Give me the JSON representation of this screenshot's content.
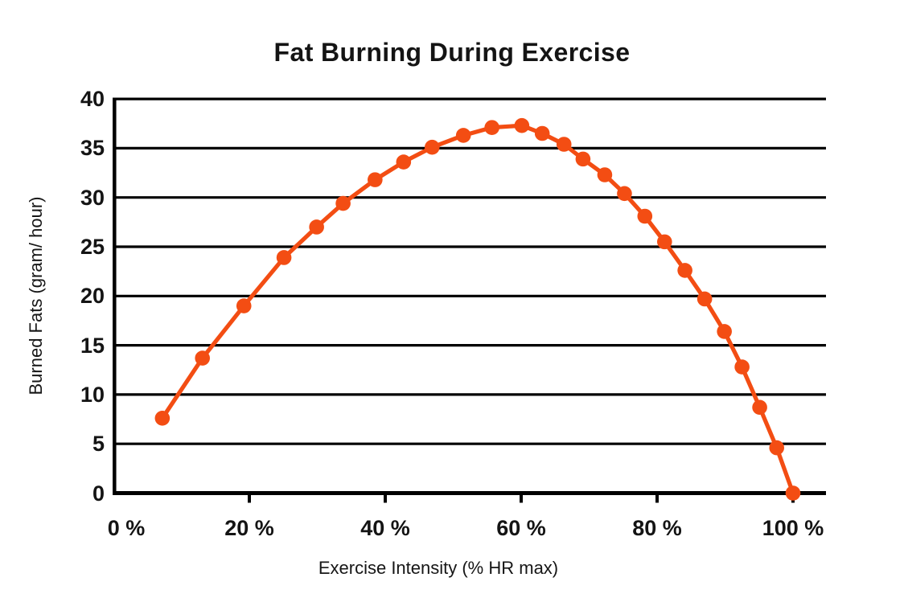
{
  "chart": {
    "title": "Fat Burning During Exercise",
    "xlabel": "Exercise Intensity (% HR max)",
    "ylabel": "Burned Fats (gram/ hour)"
  },
  "colors": {
    "line": "#F34D13",
    "axis": "#000000",
    "text": "#141414",
    "background": "#FFFFFF"
  },
  "chart_data": {
    "type": "line",
    "title": "Fat Burning During Exercise",
    "xlabel": "Exercise Intensity (% HR max)",
    "ylabel": "Burned Fats (gram/ hour)",
    "xlim": [
      0,
      105
    ],
    "ylim": [
      0,
      40
    ],
    "grid": "horizontal-only",
    "legend": false,
    "line_color": "#F34D13",
    "marker": "circle",
    "x_tick_values": [
      0,
      20,
      40,
      60,
      80,
      100
    ],
    "x_tick_labels": [
      "0 %",
      "20 %",
      "40 %",
      "60 %",
      "80 %",
      "100 %"
    ],
    "y_tick_values": [
      40,
      35,
      30,
      25,
      20,
      15,
      10,
      5,
      0
    ],
    "y_tick_labels": [
      "40",
      "35",
      "30",
      "25",
      "20",
      "15",
      "10",
      "5",
      "0"
    ],
    "series": [
      {
        "name": "burned-fat-curve",
        "points": [
          [
            7.2,
            7.6
          ],
          [
            13.1,
            13.7
          ],
          [
            19.2,
            19.0
          ],
          [
            25.1,
            23.9
          ],
          [
            29.9,
            27.0
          ],
          [
            33.8,
            29.4
          ],
          [
            38.5,
            31.8
          ],
          [
            42.7,
            33.6
          ],
          [
            46.9,
            35.1
          ],
          [
            51.5,
            36.3
          ],
          [
            55.7,
            37.1
          ],
          [
            60.1,
            37.3
          ],
          [
            63.1,
            36.5
          ],
          [
            66.3,
            35.4
          ],
          [
            69.1,
            33.9
          ],
          [
            72.3,
            32.3
          ],
          [
            75.2,
            30.4
          ],
          [
            78.2,
            28.1
          ],
          [
            81.1,
            25.5
          ],
          [
            84.1,
            22.6
          ],
          [
            87.0,
            19.7
          ],
          [
            89.9,
            16.4
          ],
          [
            92.5,
            12.8
          ],
          [
            95.1,
            8.7
          ],
          [
            97.6,
            4.6
          ],
          [
            100.0,
            0.0
          ]
        ]
      }
    ]
  }
}
